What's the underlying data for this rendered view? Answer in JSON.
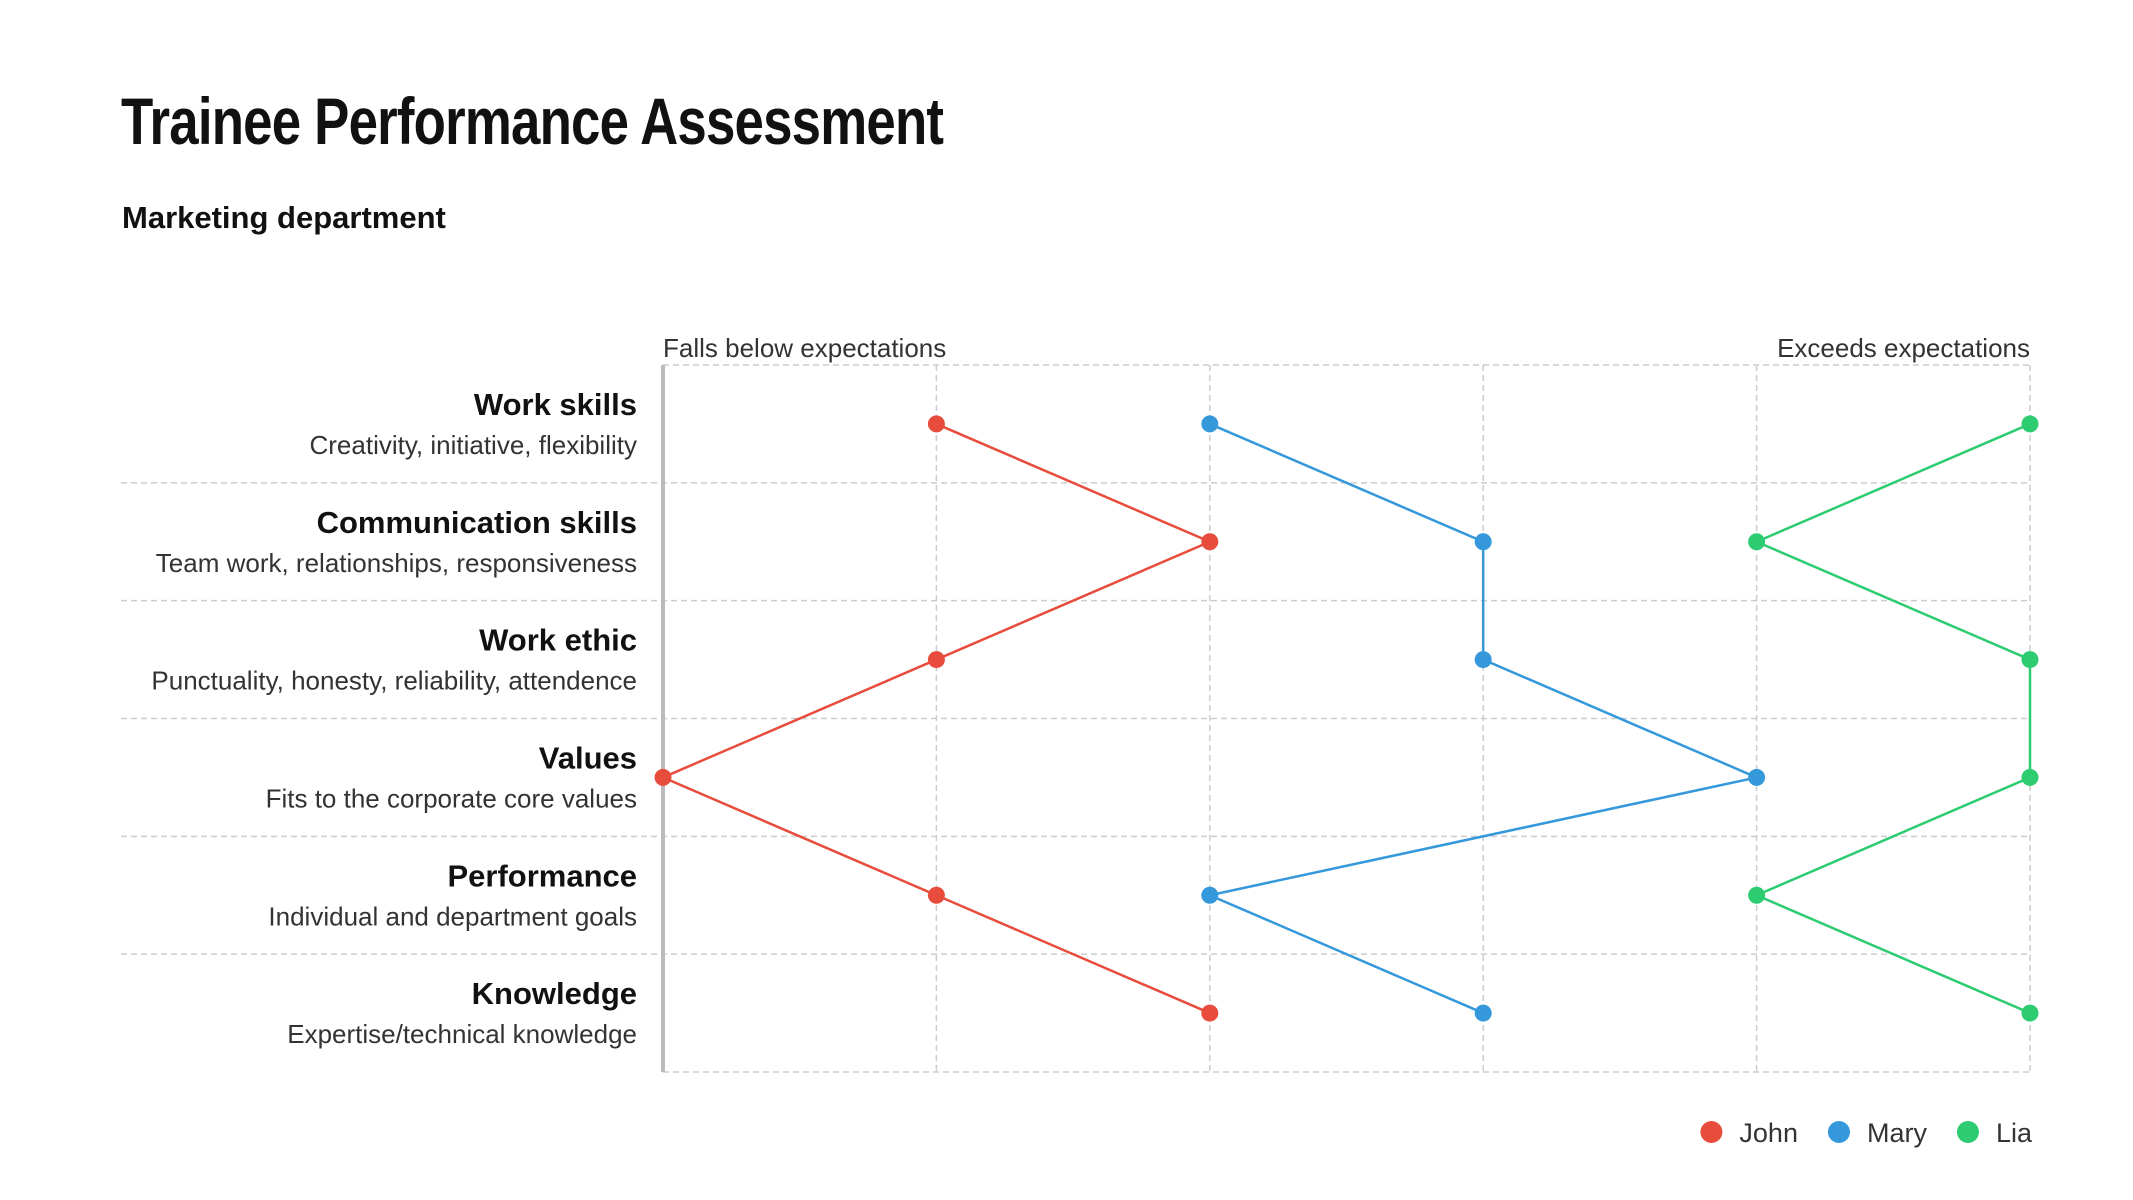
{
  "title": "Trainee Performance Assessment",
  "subtitle": "Marketing department",
  "chart_data": {
    "type": "line",
    "orientation": "horizontal-value-axis",
    "axis_left_label": "Falls below expectations",
    "axis_right_label": "Exceeds expectations",
    "xlim": [
      0,
      5
    ],
    "grid": true,
    "legend_position": "bottom-right",
    "categories": [
      {
        "name": "Work skills",
        "description": "Creativity, initiative, flexibility"
      },
      {
        "name": "Communication skills",
        "description": "Team work, relationships, responsiveness"
      },
      {
        "name": "Work ethic",
        "description": "Punctuality, honesty, reliability, attendence"
      },
      {
        "name": "Values",
        "description": "Fits to the corporate core values"
      },
      {
        "name": "Performance",
        "description": "Individual and department goals"
      },
      {
        "name": "Knowledge",
        "description": "Expertise/technical knowledge"
      }
    ],
    "series": [
      {
        "name": "John",
        "color": "#e74c3c",
        "values": [
          1,
          2,
          1,
          0,
          1,
          2
        ]
      },
      {
        "name": "Mary",
        "color": "#3498db",
        "values": [
          2,
          3,
          3,
          4,
          2,
          3
        ]
      },
      {
        "name": "Lia",
        "color": "#2ecc71",
        "values": [
          5,
          4,
          5,
          5,
          4,
          5
        ]
      }
    ]
  }
}
